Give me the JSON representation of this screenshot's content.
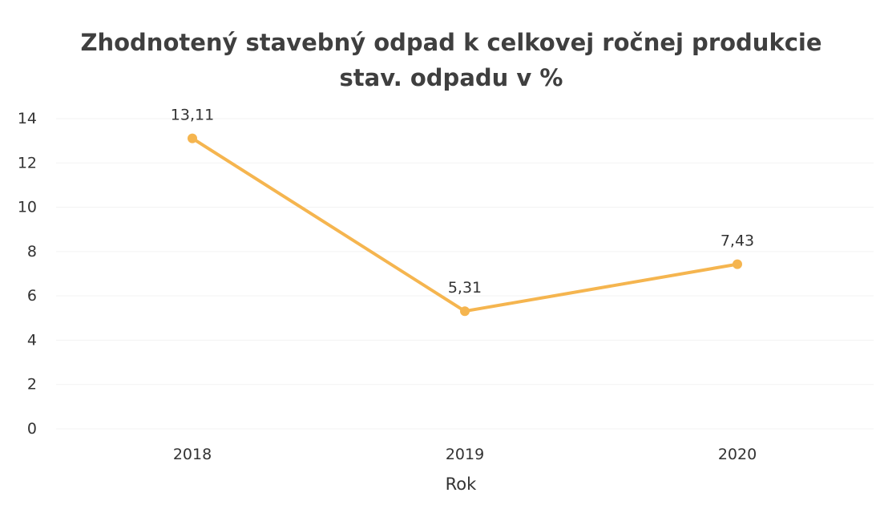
{
  "chart_data": {
    "type": "line",
    "title": "Zhodnotený stavebný odpad k celkovej ročnej produkcie stav. odpadu v %",
    "title_lines": [
      "Zhodnotený stavebný odpad k celkovej ročnej produkcie",
      "stav. odpadu v %"
    ],
    "xlabel": "Rok",
    "ylabel": "",
    "categories": [
      "2018",
      "2019",
      "2020"
    ],
    "series": [
      {
        "values": [
          13.11,
          5.31,
          7.43
        ],
        "data_labels": [
          "13,11",
          "5,31",
          "7,43"
        ],
        "color": "#f5b54f"
      }
    ],
    "ylim": [
      0,
      14
    ],
    "yticks": [
      0,
      2,
      4,
      6,
      8,
      10,
      12,
      14
    ],
    "ytick_labels": [
      "0",
      "2",
      "4",
      "6",
      "8",
      "10",
      "12",
      "14"
    ],
    "grid": true,
    "legend": "none"
  }
}
